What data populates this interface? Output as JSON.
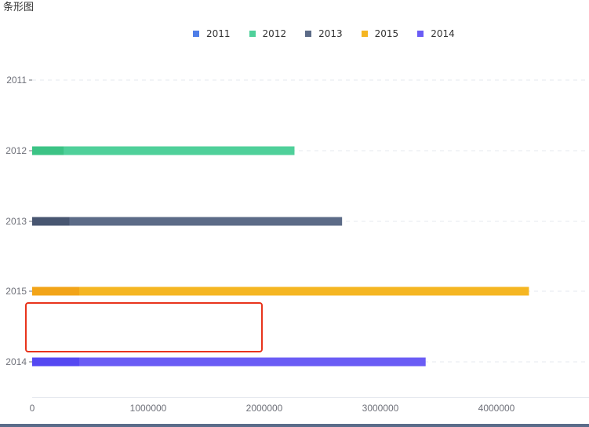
{
  "title": "条形图",
  "colors": {
    "2011": "#4f7ee8",
    "2012": "#4fd09a",
    "2013": "#5c6b87",
    "2015": "#f5b622",
    "2014": "#6a5cf5",
    "grid": "#e6e9ef",
    "axis_text": "#6e7079",
    "highlight": "#e8341c"
  },
  "chart_data": {
    "type": "bar",
    "orientation": "horizontal",
    "legend": [
      "2011",
      "2012",
      "2013",
      "2015",
      "2014"
    ],
    "legend_position": "top-center",
    "categories": [
      "2011",
      "2012",
      "2013",
      "2015",
      "2014"
    ],
    "series": [
      {
        "name": "2011",
        "values": [
          0,
          null,
          null,
          null,
          null
        ]
      },
      {
        "name": "2012",
        "values": [
          null,
          2260000,
          null,
          null,
          null
        ]
      },
      {
        "name": "2013",
        "values": [
          null,
          null,
          2670000,
          null,
          null
        ]
      },
      {
        "name": "2015",
        "values": [
          null,
          null,
          null,
          4280000,
          null
        ]
      },
      {
        "name": "2014",
        "values": [
          null,
          null,
          null,
          null,
          3390000
        ]
      }
    ],
    "x_ticks": [
      "0",
      "1000000",
      "2000000",
      "3000000",
      "4000000"
    ],
    "xlim": [
      0,
      5000000
    ],
    "grid": "dashed-horizontal"
  }
}
